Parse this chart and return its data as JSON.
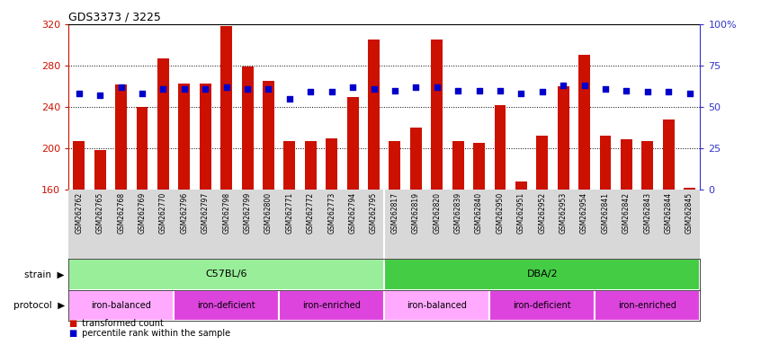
{
  "title": "GDS3373 / 3225",
  "samples": [
    "GSM262762",
    "GSM262765",
    "GSM262768",
    "GSM262769",
    "GSM262770",
    "GSM262796",
    "GSM262797",
    "GSM262798",
    "GSM262799",
    "GSM262800",
    "GSM262771",
    "GSM262772",
    "GSM262773",
    "GSM262794",
    "GSM262795",
    "GSM262817",
    "GSM262819",
    "GSM262820",
    "GSM262839",
    "GSM262840",
    "GSM262950",
    "GSM262951",
    "GSM262952",
    "GSM262953",
    "GSM262954",
    "GSM262841",
    "GSM262842",
    "GSM262843",
    "GSM262844",
    "GSM262845"
  ],
  "bar_values": [
    207,
    198,
    262,
    240,
    287,
    263,
    263,
    318,
    279,
    265,
    207,
    207,
    210,
    250,
    305,
    207,
    220,
    305,
    207,
    205,
    242,
    168,
    212,
    260,
    290,
    212,
    209,
    207,
    228,
    162
  ],
  "percentile_values": [
    58,
    57,
    62,
    58,
    61,
    61,
    61,
    62,
    61,
    61,
    55,
    59,
    59,
    62,
    61,
    60,
    62,
    62,
    60,
    60,
    60,
    58,
    59,
    63,
    63,
    61,
    60,
    59,
    59,
    58
  ],
  "bar_color": "#cc1100",
  "dot_color": "#0000cc",
  "ymin": 160,
  "ymax": 320,
  "yticks": [
    160,
    200,
    240,
    280,
    320
  ],
  "y2ticks_vals": [
    0,
    25,
    50,
    75,
    100
  ],
  "y2ticks_labels": [
    "0",
    "25",
    "50",
    "75",
    "100%"
  ],
  "left_axis_color": "#cc1100",
  "right_axis_color": "#3333cc",
  "bg_color": "#ffffff",
  "label_bg_color": "#d8d8d8",
  "strain_groups": [
    {
      "label": "C57BL/6",
      "start": 0,
      "end": 15,
      "color": "#99ee99"
    },
    {
      "label": "DBA/2",
      "start": 15,
      "end": 30,
      "color": "#44cc44"
    }
  ],
  "protocol_groups": [
    {
      "label": "iron-balanced",
      "start": 0,
      "end": 5,
      "color": "#ffaaff"
    },
    {
      "label": "iron-deficient",
      "start": 5,
      "end": 10,
      "color": "#dd44dd"
    },
    {
      "label": "iron-enriched",
      "start": 10,
      "end": 15,
      "color": "#dd44dd"
    },
    {
      "label": "iron-balanced",
      "start": 15,
      "end": 20,
      "color": "#ffaaff"
    },
    {
      "label": "iron-deficient",
      "start": 20,
      "end": 25,
      "color": "#dd44dd"
    },
    {
      "label": "iron-enriched",
      "start": 25,
      "end": 30,
      "color": "#dd44dd"
    }
  ],
  "grid_yticks": [
    200,
    240,
    280
  ]
}
